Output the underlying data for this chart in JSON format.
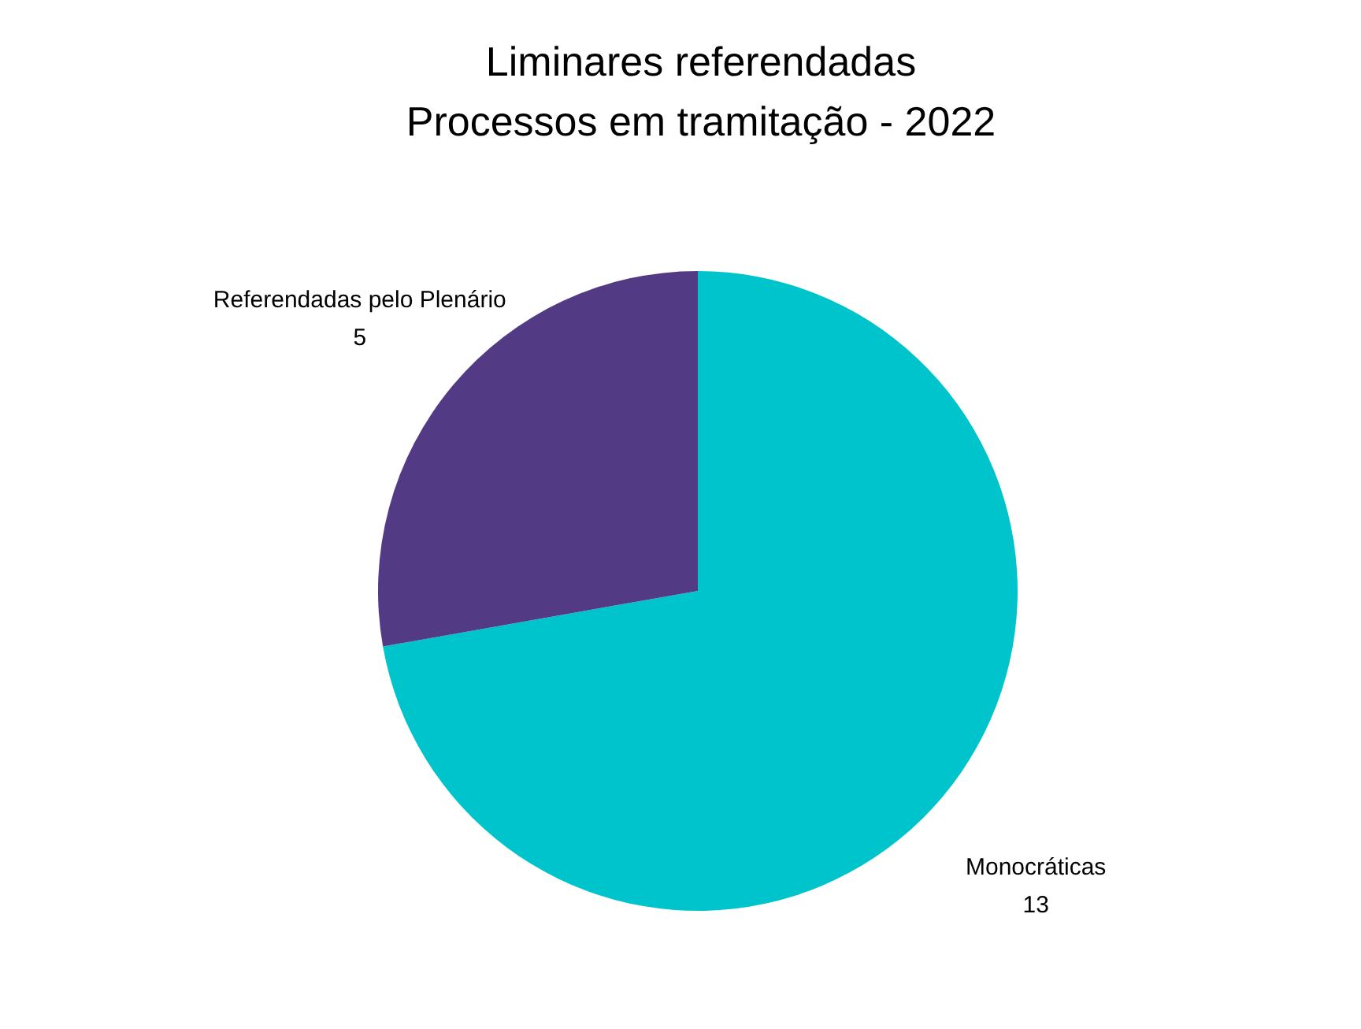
{
  "chart_data": {
    "type": "pie",
    "title": "Liminares referendadas",
    "subtitle": "Processos em tramitação - 2022",
    "categories": [
      "Monocráticas",
      "Referendadas pelo Plenário"
    ],
    "values": [
      13,
      5
    ],
    "colors": [
      "#00c4cc",
      "#523a85"
    ],
    "data_labels": true
  }
}
